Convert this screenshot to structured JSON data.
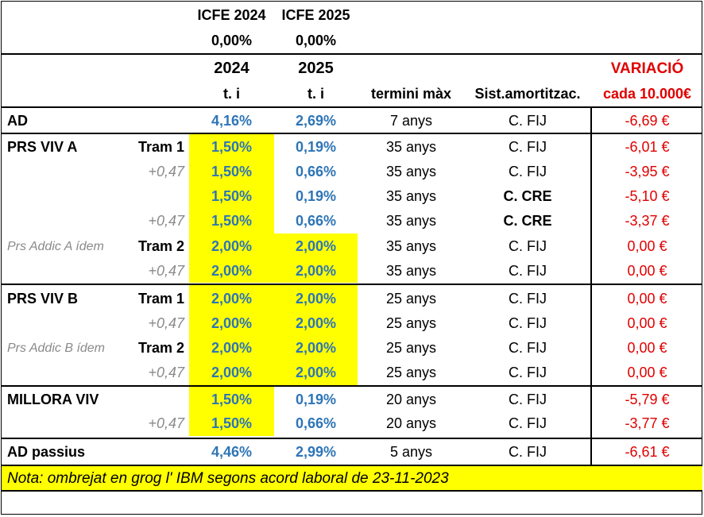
{
  "header": {
    "icfe_2024": "ICFE 2024",
    "icfe_2025": "ICFE 2025",
    "icfe_2024_pct": "0,00%",
    "icfe_2025_pct": "0,00%",
    "year_2024": "2024",
    "year_2025": "2025",
    "variacio": "VARIACIÓ",
    "ti_2024": "t. i",
    "ti_2025": "t. i",
    "termini": "termini màx",
    "sist": "Sist.amortitzac.",
    "cada": "cada 10.000€"
  },
  "rows": [
    {
      "name": "AD",
      "sub": "",
      "r24": "4,16%",
      "r25": "2,69%",
      "term": "7 anys",
      "sist": "C. FIJ",
      "var": "-6,69 €"
    },
    {
      "name": "PRS VIV A",
      "sub": "Tram 1",
      "r24": "1,50%",
      "r25": "0,19%",
      "term": "35 anys",
      "sist": "C. FIJ",
      "var": "-6,01 €"
    },
    {
      "name": "",
      "sub": "+0,47",
      "r24": "1,50%",
      "r25": "0,66%",
      "term": "35 anys",
      "sist": "C. FIJ",
      "var": "-3,95 €"
    },
    {
      "name": "",
      "sub": "",
      "r24": "1,50%",
      "r25": "0,19%",
      "term": "35 anys",
      "sist": "C. CRE",
      "var": "-5,10 €"
    },
    {
      "name": "",
      "sub": "+0,47",
      "r24": "1,50%",
      "r25": "0,66%",
      "term": "35 anys",
      "sist": "C. CRE",
      "var": "-3,37 €"
    },
    {
      "name": "Prs Addic A ídem",
      "sub": "Tram 2",
      "r24": "2,00%",
      "r25": "2,00%",
      "term": "35 anys",
      "sist": "C. FIJ",
      "var": "0,00 €"
    },
    {
      "name": "",
      "sub": "+0,47",
      "r24": "2,00%",
      "r25": "2,00%",
      "term": "35 anys",
      "sist": "C. FIJ",
      "var": "0,00 €"
    },
    {
      "name": "PRS VIV B",
      "sub": "Tram 1",
      "r24": "2,00%",
      "r25": "2,00%",
      "term": "25 anys",
      "sist": "C. FIJ",
      "var": "0,00 €"
    },
    {
      "name": "",
      "sub": "+0,47",
      "r24": "2,00%",
      "r25": "2,00%",
      "term": "25 anys",
      "sist": "C. FIJ",
      "var": "0,00 €"
    },
    {
      "name": "Prs Addic B ídem",
      "sub": "Tram 2",
      "r24": "2,00%",
      "r25": "2,00%",
      "term": "25 anys",
      "sist": "C. FIJ",
      "var": "0,00 €"
    },
    {
      "name": "",
      "sub": "+0,47",
      "r24": "2,00%",
      "r25": "2,00%",
      "term": "25 anys",
      "sist": "C. FIJ",
      "var": "0,00 €"
    },
    {
      "name": "MILLORA VIV",
      "sub": "",
      "r24": "1,50%",
      "r25": "0,19%",
      "term": "20 anys",
      "sist": "C. FIJ",
      "var": "-5,79 €"
    },
    {
      "name": "",
      "sub": "+0,47",
      "r24": "1,50%",
      "r25": "0,66%",
      "term": "20 anys",
      "sist": "C. FIJ",
      "var": "-3,77 €"
    },
    {
      "name": "AD passius",
      "sub": "",
      "r24": "4,46%",
      "r25": "2,99%",
      "term": "5 anys",
      "sist": "C. FIJ",
      "var": "-6,61 €"
    }
  ],
  "note": "Nota: ombrejat en grog l' IBM segons acord laboral de 23-11-2023",
  "colors": {
    "highlight": "#FFFF00",
    "rate_blue": "#2E75B6",
    "variation_red": "#E00000",
    "muted_grey": "#8A8A8A"
  }
}
